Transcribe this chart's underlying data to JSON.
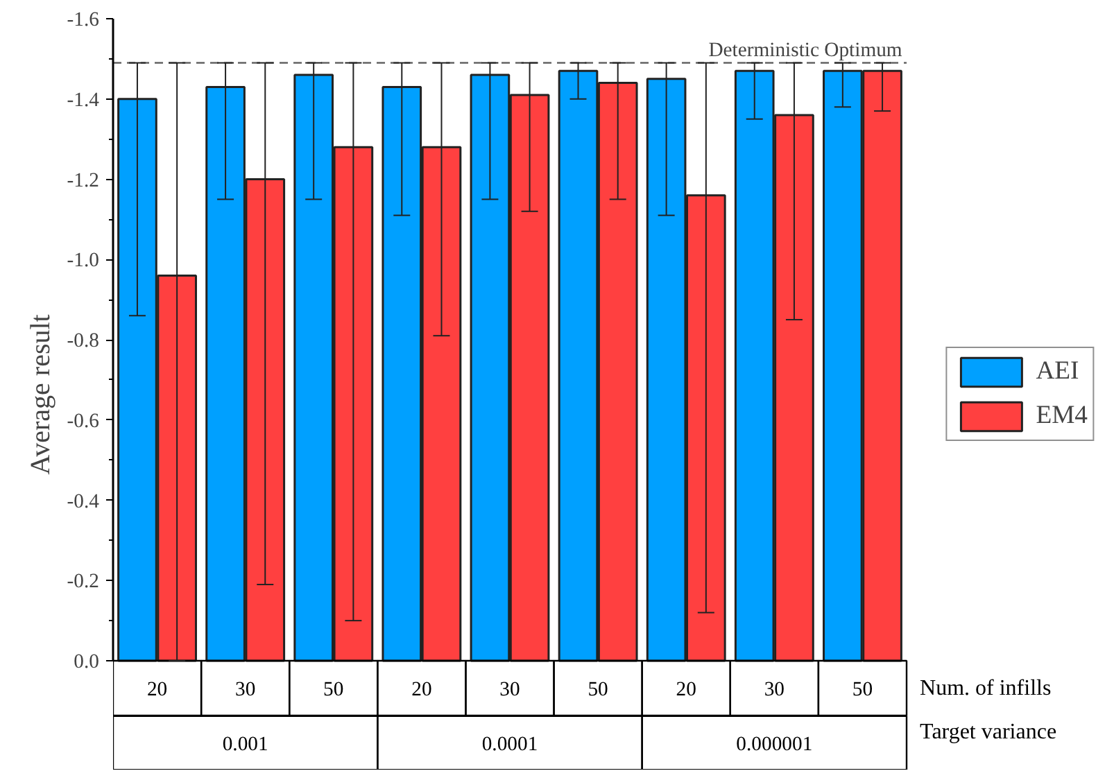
{
  "chart_data": {
    "type": "bar",
    "ylabel": "Average result",
    "xlabel": "Num. of infills",
    "categories": [
      "20",
      "30",
      "50",
      "20",
      "30",
      "50",
      "20",
      "30",
      "50"
    ],
    "series": [
      {
        "name": "AEI",
        "color": "#00a0ff",
        "values": [
          -1.4,
          -1.43,
          -1.46,
          -1.43,
          -1.46,
          -1.47,
          -1.45,
          -1.47,
          -1.47
        ],
        "errors": [
          [
            -1.49,
            -0.86
          ],
          [
            -1.49,
            -1.15
          ],
          [
            -1.49,
            -1.15
          ],
          [
            -1.49,
            -1.11
          ],
          [
            -1.49,
            -1.15
          ],
          [
            -1.49,
            -1.4
          ],
          [
            -1.49,
            -1.11
          ],
          [
            -1.49,
            -1.35
          ],
          [
            -1.49,
            -1.38
          ]
        ]
      },
      {
        "name": "EM4",
        "color": "#ff4040",
        "values": [
          -0.96,
          -1.2,
          -1.28,
          -1.28,
          -1.41,
          -1.44,
          -1.16,
          -1.36,
          -1.47
        ],
        "errors": [
          [
            -1.49,
            0
          ],
          [
            -1.49,
            -0.19
          ],
          [
            -1.49,
            -0.1
          ],
          [
            -1.49,
            -0.81
          ],
          [
            -1.49,
            -1.12
          ],
          [
            -1.49,
            -1.15
          ],
          [
            -1.49,
            -0.12
          ],
          [
            -1.49,
            -0.85
          ],
          [
            -1.49,
            -1.37
          ]
        ]
      }
    ],
    "ylim": [
      0,
      -1.6
    ],
    "yticks": [
      {
        "value": 0,
        "label": "0.0"
      },
      -0.2,
      -0.4,
      -0.6,
      -0.8,
      {
        "value": -1.0,
        "label": "-1.0"
      },
      -1.2,
      -1.4,
      -1.6
    ],
    "ref_lines": [
      {
        "axis": "y",
        "value": -1.49,
        "label": "Deterministic Optimum",
        "color": "#555555",
        "line_style": "dashed"
      }
    ],
    "annotations": [
      "0.001",
      "0.0001",
      "0.000001",
      "Target variance"
    ],
    "grid": false,
    "legend": "right"
  }
}
